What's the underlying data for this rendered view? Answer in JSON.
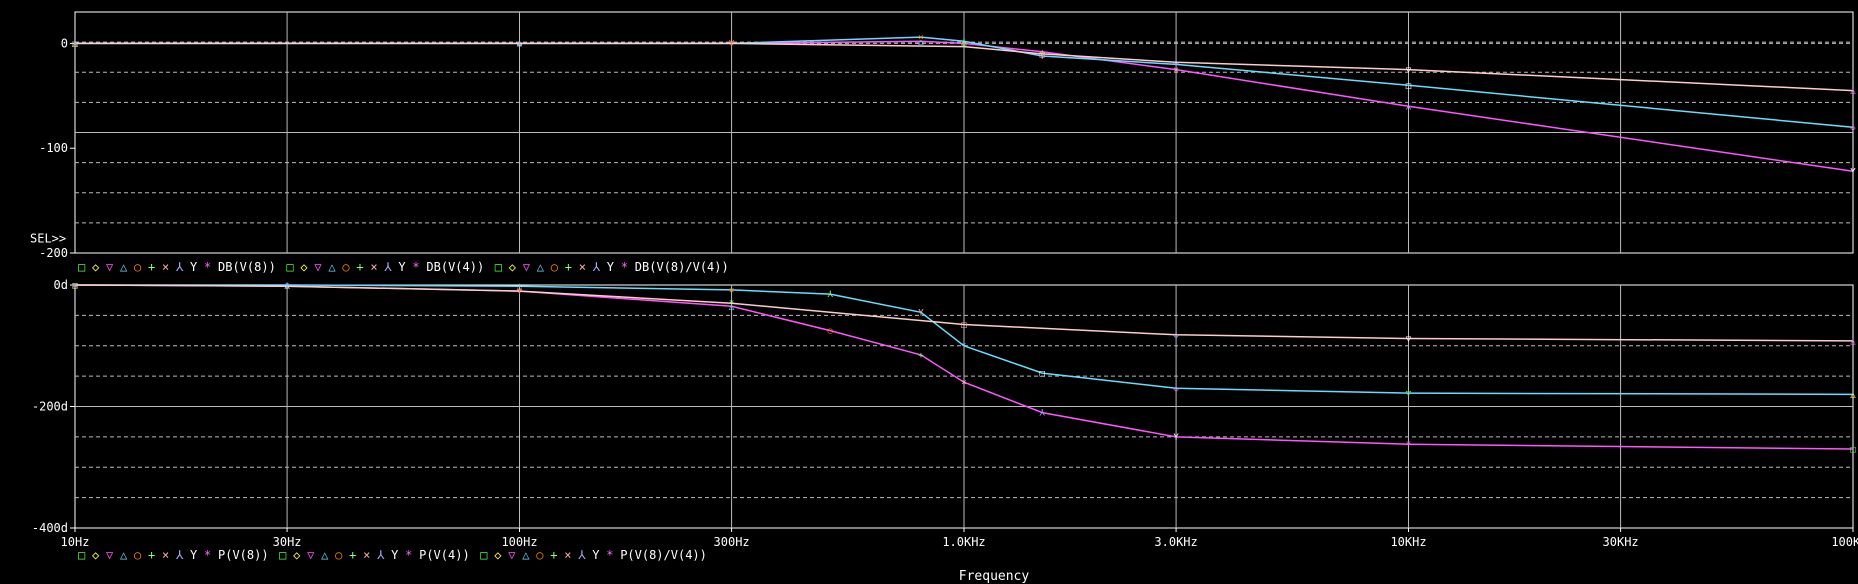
{
  "chart_data": [
    {
      "type": "line",
      "xscale": "log",
      "xlim": [
        10,
        100000
      ],
      "ylim": [
        -200,
        30
      ],
      "yticks": [
        "0",
        "-100",
        "-200"
      ],
      "sel_marker": "SEL>>",
      "grid": true,
      "series": [
        {
          "name": "DB(V(8))",
          "color": "#ff55ff",
          "x": [
            10,
            100,
            300,
            800,
            1000,
            1500,
            3000,
            10000,
            100000
          ],
          "y": [
            0,
            0,
            0,
            2,
            0,
            -8,
            -25,
            -60,
            -122
          ]
        },
        {
          "name": "DB(V(4))",
          "color": "#66ddff",
          "x": [
            10,
            100,
            300,
            800,
            1000,
            1500,
            3000,
            10000,
            100000
          ],
          "y": [
            0,
            0,
            0,
            6,
            2,
            -12,
            -20,
            -40,
            -80
          ]
        },
        {
          "name": "DB(V(8)/V(4))",
          "color": "#ffcccc",
          "x": [
            10,
            100,
            300,
            1000,
            1500,
            3000,
            10000,
            100000
          ],
          "y": [
            0,
            0,
            0,
            -3,
            -10,
            -18,
            -25,
            -45
          ]
        }
      ],
      "legend_markers": [
        "□",
        "◇",
        "▽",
        "△",
        "○",
        "+",
        "×",
        "⅄",
        "Y",
        "*"
      ]
    },
    {
      "type": "line",
      "xscale": "log",
      "xlim": [
        10,
        100000
      ],
      "ylim": [
        -400,
        0
      ],
      "yticks": [
        "0d",
        "-200d",
        "-400d"
      ],
      "grid": true,
      "series": [
        {
          "name": "P(V(8))",
          "color": "#ff55ff",
          "x": [
            10,
            30,
            100,
            300,
            500,
            800,
            1000,
            1500,
            3000,
            10000,
            100000
          ],
          "y": [
            0,
            -2,
            -10,
            -35,
            -75,
            -115,
            -160,
            -210,
            -250,
            -262,
            -270
          ]
        },
        {
          "name": "P(V(4))",
          "color": "#66ddff",
          "x": [
            10,
            30,
            100,
            300,
            500,
            800,
            1000,
            1500,
            3000,
            10000,
            100000
          ],
          "y": [
            0,
            0,
            -2,
            -8,
            -15,
            -45,
            -100,
            -145,
            -170,
            -178,
            -180
          ]
        },
        {
          "name": "P(V(8)/V(4))",
          "color": "#ffcccc",
          "x": [
            10,
            30,
            100,
            300,
            1000,
            3000,
            10000,
            100000
          ],
          "y": [
            0,
            -2,
            -10,
            -30,
            -65,
            -82,
            -88,
            -92
          ]
        }
      ],
      "legend_markers": [
        "□",
        "◇",
        "▽",
        "△",
        "○",
        "+",
        "×",
        "⅄",
        "Y",
        "*"
      ]
    }
  ],
  "x_axis": {
    "ticks": [
      {
        "value": 10,
        "label": "10Hz"
      },
      {
        "value": 30,
        "label": "30Hz"
      },
      {
        "value": 100,
        "label": "100Hz"
      },
      {
        "value": 300,
        "label": "300Hz"
      },
      {
        "value": 1000,
        "label": "1.0KHz"
      },
      {
        "value": 3000,
        "label": "3.0KHz"
      },
      {
        "value": 10000,
        "label": "10KHz"
      },
      {
        "value": 30000,
        "label": "30KHz"
      },
      {
        "value": 100000,
        "label": "100KHz"
      }
    ],
    "xlabel": "Frequency"
  },
  "colors": {
    "background": "#000000",
    "frame": "#ffffff",
    "grid": "#bbbbbb"
  },
  "marker_colors": [
    "#44ff44",
    "#ffff44",
    "#ff55ff",
    "#66ddff",
    "#ff8800",
    "#88ff88",
    "#ffaaaa",
    "#aaaaff",
    "#ffffff",
    "#ff66ff"
  ]
}
